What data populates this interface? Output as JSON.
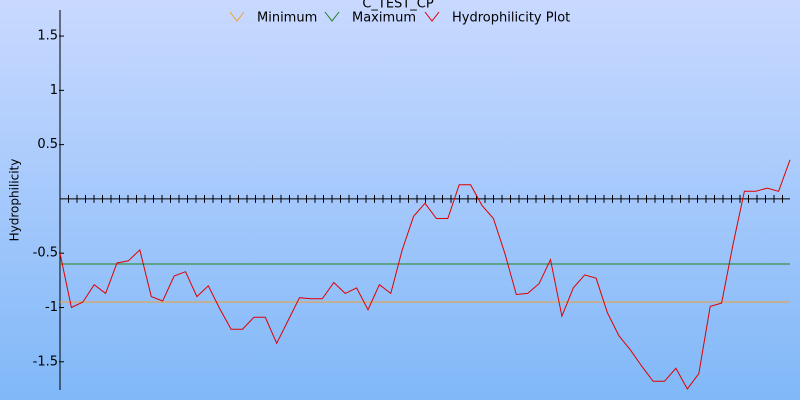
{
  "chart_data": {
    "type": "line",
    "title": "C_TEST_CP",
    "y_label": "Hydrophilicity",
    "ylim": [
      -1.76,
      1.74
    ],
    "yticks": [
      1.5,
      1,
      0.5,
      -0.5,
      -1,
      -1.5
    ],
    "series": [
      {
        "name": "Minimum",
        "color": "#f0a030",
        "value": -0.95
      },
      {
        "name": "Maximum",
        "color": "#208020",
        "value": -0.6
      },
      {
        "name": "Hydrophilicity Plot",
        "color": "#e00000",
        "values": [
          -0.5,
          -1.0,
          -0.95,
          -0.79,
          -0.87,
          -0.59,
          -0.57,
          -0.47,
          -0.9,
          -0.94,
          -0.71,
          -0.67,
          -0.9,
          -0.8,
          -1.01,
          -1.2,
          -1.2,
          -1.09,
          -1.09,
          -1.33,
          -1.12,
          -0.91,
          -0.92,
          -0.92,
          -0.77,
          -0.87,
          -0.82,
          -1.02,
          -0.79,
          -0.87,
          -0.47,
          -0.16,
          -0.04,
          -0.18,
          -0.18,
          0.13,
          0.13,
          -0.06,
          -0.18,
          -0.5,
          -0.88,
          -0.87,
          -0.78,
          -0.56,
          -1.08,
          -0.82,
          -0.7,
          -0.73,
          -1.05,
          -1.26,
          -1.39,
          -1.54,
          -1.68,
          -1.68,
          -1.56,
          -1.75,
          -1.61,
          -0.99,
          -0.96,
          -0.42,
          0.07,
          0.07,
          0.1,
          0.07,
          0.36
        ]
      }
    ]
  }
}
